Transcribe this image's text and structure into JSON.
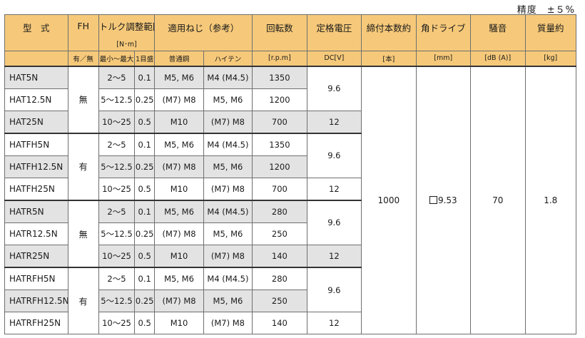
{
  "precision": "精度　±５%",
  "headers": {
    "model": "型　式",
    "fh": "FH",
    "fh_sub": "有／無",
    "torque": "トルク調整範囲",
    "torque_unit": "[N･m]",
    "torque_range": "最小～最大",
    "torque_step": "1目盛",
    "screw": "適用ねじ（参考）",
    "screw_normal": "普通鋼",
    "screw_hightensile": "ハイテン",
    "rpm": "回転数",
    "rpm_unit": "[r.p.m]",
    "voltage": "定格電圧",
    "voltage_unit": "DC[V]",
    "count": "締付本数約",
    "count_unit": "[本]",
    "drive": "角ドライブ",
    "drive_unit": "[mm]",
    "noise": "騒音",
    "noise_unit": "[dB (A)]",
    "weight": "質量約",
    "weight_unit": "[kg]"
  },
  "rows": [
    {
      "model": "HAT5N",
      "range": "2～5",
      "step": "0.1",
      "normal": "M5, M6",
      "high": "M4 (M4.5)",
      "rpm": "1350"
    },
    {
      "model": "HAT12.5N",
      "range": "5～12.5",
      "step": "0.25",
      "normal": "(M7) M8",
      "high": "M5, M6",
      "rpm": "1200"
    },
    {
      "model": "HAT25N",
      "range": "10～25",
      "step": "0.5",
      "normal": "M10",
      "high": "(M7) M8",
      "rpm": "700"
    },
    {
      "model": "HATFH5N",
      "range": "2～5",
      "step": "0.1",
      "normal": "M5, M6",
      "high": "M4 (M4.5)",
      "rpm": "1350"
    },
    {
      "model": "HATFH12.5N",
      "range": "5～12.5",
      "step": "0.25",
      "normal": "(M7) M8",
      "high": "M5, M6",
      "rpm": "1200"
    },
    {
      "model": "HATFH25N",
      "range": "10～25",
      "step": "0.5",
      "normal": "M10",
      "high": "(M7) M8",
      "rpm": "700"
    },
    {
      "model": "HATR5N",
      "range": "2～5",
      "step": "0.1",
      "normal": "M5, M6",
      "high": "M4 (M4.5)",
      "rpm": "280"
    },
    {
      "model": "HATR12.5N",
      "range": "5～12.5",
      "step": "0.25",
      "normal": "(M7) M8",
      "high": "M5, M6",
      "rpm": "250"
    },
    {
      "model": "HATR25N",
      "range": "10～25",
      "step": "0.5",
      "normal": "M10",
      "high": "(M7) M8",
      "rpm": "140"
    },
    {
      "model": "HATRFH5N",
      "range": "2～5",
      "step": "0.1",
      "normal": "M5, M6",
      "high": "M4 (M4.5)",
      "rpm": "280"
    },
    {
      "model": "HATRFH12.5N",
      "range": "5～12.5",
      "step": "0.25",
      "normal": "(M7) M8",
      "high": "M5, M6",
      "rpm": "250"
    },
    {
      "model": "HATRFH25N",
      "range": "10～25",
      "step": "0.5",
      "normal": "M10",
      "high": "(M7) M8",
      "rpm": "140"
    }
  ],
  "groups": [
    {
      "fh": "無",
      "voltage_pair": "9.6",
      "voltage_single": "12"
    },
    {
      "fh": "有",
      "voltage_pair": "9.6",
      "voltage_single": "12"
    },
    {
      "fh": "無",
      "voltage_pair": "9.6",
      "voltage_single": "12"
    },
    {
      "fh": "有",
      "voltage_pair": "9.6",
      "voltage_single": "12"
    }
  ],
  "common": {
    "count": "1000",
    "drive": "9.53",
    "noise": "70",
    "weight": "1.8"
  },
  "colors": {
    "header_bg": "#f6c97a",
    "row_shade": "#e3e3e3"
  }
}
